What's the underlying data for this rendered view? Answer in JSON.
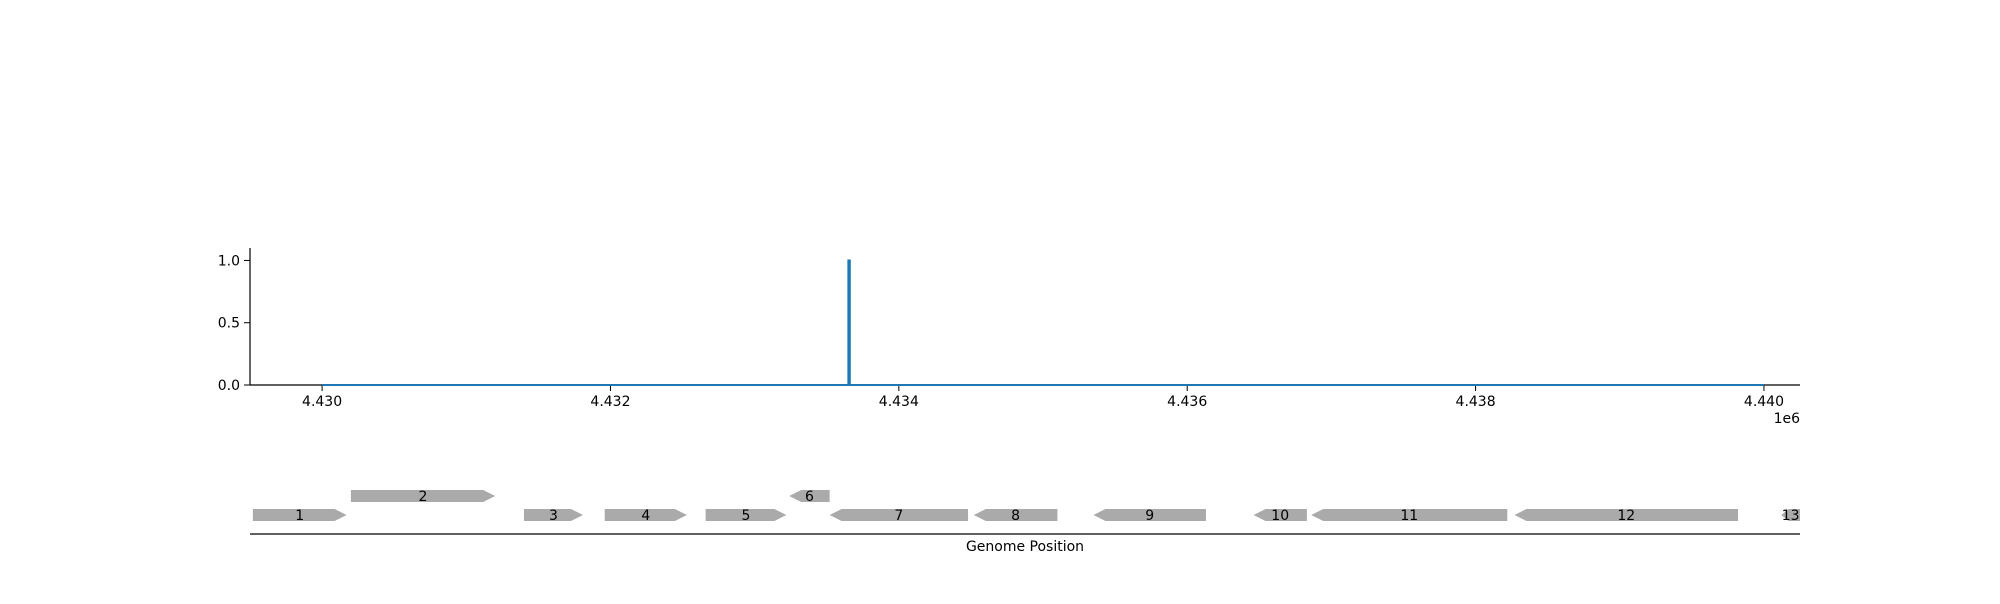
{
  "chart_data": [
    {
      "type": "line",
      "title": "",
      "xlabel": "",
      "ylabel": "",
      "x_offset_label": "1e6",
      "xlim": [
        4429500,
        4440250
      ],
      "ylim": [
        0,
        1.1
      ],
      "x_ticks": [
        4430000,
        4432000,
        4434000,
        4436000,
        4438000,
        4440000
      ],
      "x_tick_labels": [
        "4.430",
        "4.432",
        "4.434",
        "4.436",
        "4.438",
        "4.440"
      ],
      "y_ticks": [
        0.0,
        0.5,
        1.0
      ],
      "y_tick_labels": [
        "0.0",
        "0.5",
        "1.0"
      ],
      "grid": false,
      "color": "#1f77b4",
      "series": [
        {
          "x": [
            4430000,
            4433650,
            4433650,
            4433660,
            4433660,
            4440000
          ],
          "y": [
            0,
            0,
            1,
            1,
            0,
            0
          ]
        }
      ]
    },
    {
      "type": "gene-track",
      "xlabel": "Genome Position",
      "xlim": [
        4429500,
        4440250
      ],
      "color": "#aaaaaa",
      "genes": [
        {
          "label": "1",
          "start": 4429520,
          "end": 4430170,
          "strand": "+",
          "row": 0
        },
        {
          "label": "2",
          "start": 4430200,
          "end": 4431200,
          "strand": "+",
          "row": 1
        },
        {
          "label": "3",
          "start": 4431400,
          "end": 4431810,
          "strand": "+",
          "row": 0
        },
        {
          "label": "4",
          "start": 4431960,
          "end": 4432530,
          "strand": "+",
          "row": 0
        },
        {
          "label": "5",
          "start": 4432660,
          "end": 4433220,
          "strand": "+",
          "row": 0
        },
        {
          "label": "6",
          "start": 4433240,
          "end": 4433520,
          "strand": "-",
          "row": 1
        },
        {
          "label": "7",
          "start": 4433520,
          "end": 4434480,
          "strand": "-",
          "row": 0
        },
        {
          "label": "8",
          "start": 4434520,
          "end": 4435100,
          "strand": "-",
          "row": 0
        },
        {
          "label": "9",
          "start": 4435350,
          "end": 4436130,
          "strand": "-",
          "row": 0
        },
        {
          "label": "10",
          "start": 4436460,
          "end": 4436830,
          "strand": "-",
          "row": 0
        },
        {
          "label": "11",
          "start": 4436860,
          "end": 4438220,
          "strand": "-",
          "row": 0
        },
        {
          "label": "12",
          "start": 4438270,
          "end": 4439820,
          "strand": "-",
          "row": 0
        },
        {
          "label": "13",
          "start": 4440120,
          "end": 4440470,
          "strand": "-",
          "row": 0
        }
      ]
    }
  ]
}
